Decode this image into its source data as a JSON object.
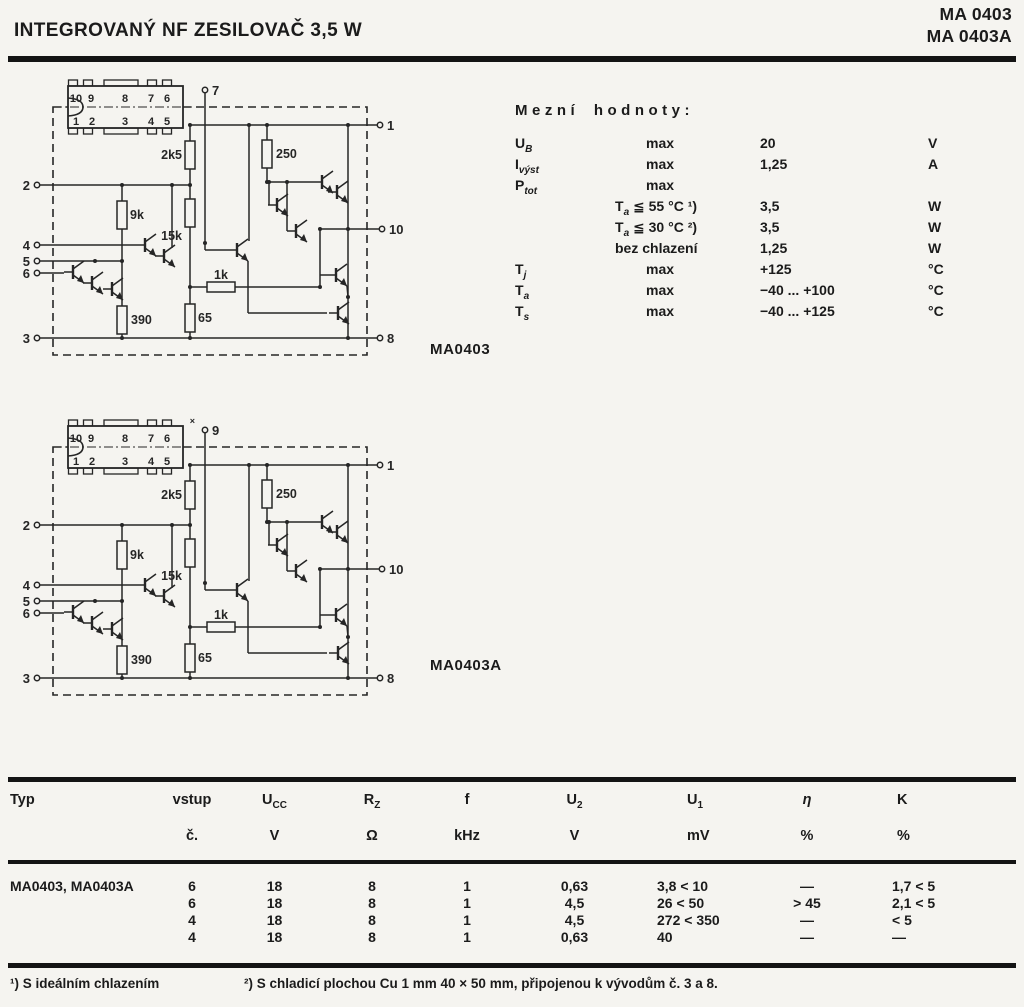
{
  "header": {
    "title": "INTEGROVANÝ NF ZESILOVAČ 3,5 W",
    "part_numbers": [
      "MA 0403",
      "MA 0403A"
    ]
  },
  "schematics": [
    {
      "name": "MA0403",
      "top_terminal": "7",
      "top_marker": "",
      "package_pins_top": [
        "10",
        "9",
        "8",
        "7",
        "6"
      ],
      "package_pins_bottom": [
        "1",
        "2",
        "3",
        "4",
        "5"
      ],
      "left_terminals": [
        "2",
        "4",
        "5",
        "6",
        "3"
      ],
      "right_terminals": [
        "1",
        "10",
        "8"
      ],
      "resistors": [
        "2k5",
        "250",
        "9k",
        "15k",
        "1k",
        "390",
        "65"
      ]
    },
    {
      "name": "MA0403A",
      "top_terminal": "9",
      "top_marker": "×",
      "package_pins_top": [
        "10",
        "9",
        "8",
        "7",
        "6"
      ],
      "package_pins_bottom": [
        "1",
        "2",
        "3",
        "4",
        "5"
      ],
      "left_terminals": [
        "2",
        "4",
        "5",
        "6",
        "3"
      ],
      "right_terminals": [
        "1",
        "10",
        "8"
      ],
      "resistors": [
        "2k5",
        "250",
        "9k",
        "15k",
        "1k",
        "390",
        "65"
      ]
    }
  ],
  "limits": {
    "title": "Mezní hodnoty:",
    "rows": [
      {
        "sym": "U",
        "sub": "B",
        "cond": "max",
        "cond_sub": "",
        "cond_rest": "",
        "val": "20",
        "unit": "V"
      },
      {
        "sym": "I",
        "sub": "výst",
        "cond": "max",
        "cond_sub": "",
        "cond_rest": "",
        "val": "1,25",
        "unit": "A"
      },
      {
        "sym": "P",
        "sub": "tot",
        "cond": "max",
        "cond_sub": "",
        "cond_rest": "",
        "val": "",
        "unit": ""
      },
      {
        "sym": "",
        "sub": "",
        "cond": "T",
        "cond_sub": "a",
        "cond_rest": " ≦ 55 °C ¹)",
        "val": "3,5",
        "unit": "W"
      },
      {
        "sym": "",
        "sub": "",
        "cond": "T",
        "cond_sub": "a",
        "cond_rest": " ≦ 30 °C ²)",
        "val": "3,5",
        "unit": "W"
      },
      {
        "sym": "",
        "sub": "",
        "cond": "bez chlazení",
        "cond_sub": "",
        "cond_rest": "",
        "val": "1,25",
        "unit": "W"
      },
      {
        "sym": "T",
        "sub": "j",
        "cond": "max",
        "cond_sub": "",
        "cond_rest": "",
        "val": "+125",
        "unit": "°C"
      },
      {
        "sym": "T",
        "sub": "a",
        "cond": "max",
        "cond_sub": "",
        "cond_rest": "",
        "val": "−40 ... +100",
        "unit": "°C"
      },
      {
        "sym": "T",
        "sub": "s",
        "cond": "max",
        "cond_sub": "",
        "cond_rest": "",
        "val": "−40 ... +125",
        "unit": "°C"
      }
    ]
  },
  "spec_table": {
    "headers": [
      {
        "t": "Typ",
        "sub": ""
      },
      {
        "t": "vstup",
        "sub": ""
      },
      {
        "t": "U",
        "sub": "CC"
      },
      {
        "t": "R",
        "sub": "Z"
      },
      {
        "t": "f",
        "sub": ""
      },
      {
        "t": "U",
        "sub": "2"
      },
      {
        "t": "U",
        "sub": "1"
      },
      {
        "t": "η",
        "sub": ""
      },
      {
        "t": "K",
        "sub": ""
      }
    ],
    "units": [
      "",
      "č.",
      "V",
      "Ω",
      "kHz",
      "V",
      "mV",
      "%",
      "%"
    ],
    "row_label": "MA0403, MA0403A",
    "rows": [
      [
        "6",
        "18",
        "8",
        "1",
        "0,63",
        "3,8 < 10",
        "—",
        "1,7 < 5"
      ],
      [
        "6",
        "18",
        "8",
        "1",
        "4,5",
        "26 < 50",
        "> 45",
        "2,1 < 5"
      ],
      [
        "4",
        "18",
        "8",
        "1",
        "4,5",
        "272 < 350",
        "—",
        "< 5"
      ],
      [
        "4",
        "18",
        "8",
        "1",
        "0,63",
        "40",
        "—",
        "—"
      ]
    ]
  },
  "footnotes": [
    "¹) S ideálním chlazením",
    "²) S chladicí plochou Cu 1 mm 40 × 50 mm, připojenou k vývodům č. 3 a 8."
  ]
}
